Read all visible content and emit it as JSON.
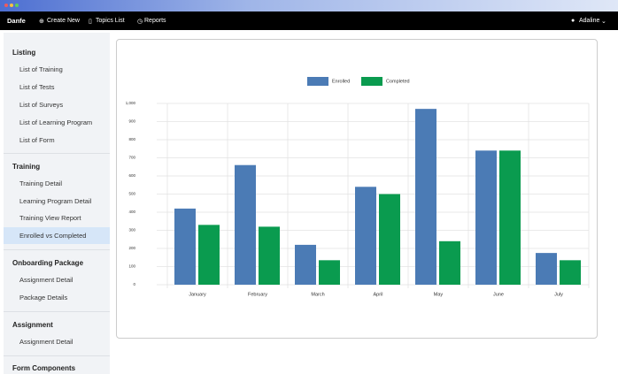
{
  "nav": {
    "brand": "Danfe",
    "links": [
      "Create New",
      "Topics List",
      "Reports"
    ],
    "user": "Adaline"
  },
  "sidebar": {
    "sections": [
      {
        "title": "Listing",
        "items": [
          "List of Training",
          "List of Tests",
          "List of Surveys",
          "List of Learning Program",
          "List of Form"
        ]
      },
      {
        "title": "Training",
        "items": [
          "Training Detail",
          "Learning Program Detail",
          "Training View Report",
          "Enrolled vs Completed"
        ]
      },
      {
        "title": "Onboarding Package",
        "items": [
          "Assignment Detail",
          "Package Details"
        ]
      },
      {
        "title": "Assignment",
        "items": [
          "Assignment Detail"
        ]
      },
      {
        "title": "Form Components",
        "items": []
      }
    ]
  },
  "chart_data": {
    "type": "bar",
    "categories": [
      "January",
      "February",
      "March",
      "April",
      "May",
      "June",
      "July"
    ],
    "series": [
      {
        "name": "Enrolled",
        "color": "#4b7bb5",
        "values": [
          420,
          660,
          220,
          540,
          970,
          740,
          175
        ]
      },
      {
        "name": "Completed",
        "color": "#0a9b4f",
        "values": [
          330,
          320,
          135,
          500,
          240,
          740,
          135
        ]
      }
    ],
    "ylim": [
      0,
      1000
    ],
    "yticks": [
      0,
      100,
      200,
      300,
      400,
      500,
      600,
      700,
      800,
      900,
      {
        "value": 1000,
        "label": "1,000"
      }
    ],
    "grid": true,
    "legend": "top"
  }
}
